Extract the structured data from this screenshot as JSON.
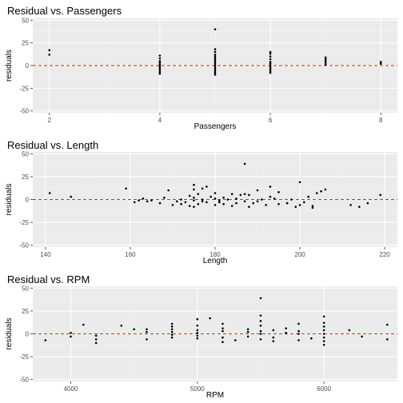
{
  "chart_data": [
    {
      "type": "scatter",
      "title": "Residual vs. Passengers",
      "xlabel": "Passengers",
      "ylabel": "residuals",
      "xlim": [
        1.7,
        8.3
      ],
      "ylim": [
        -52,
        52
      ],
      "xticks": [
        2,
        4,
        6,
        8
      ],
      "xtick_labels": [
        "2",
        "4",
        "6",
        "8"
      ],
      "yticks": [
        -50,
        -25,
        0,
        25,
        50
      ],
      "ytick_labels": [
        "-50",
        "-25",
        "0",
        "25",
        "50"
      ],
      "reference_line": 0,
      "points": [
        [
          2,
          12
        ],
        [
          2,
          17
        ],
        [
          4,
          -9
        ],
        [
          4,
          -7
        ],
        [
          4,
          -5
        ],
        [
          4,
          -3
        ],
        [
          4,
          -1
        ],
        [
          4,
          1
        ],
        [
          4,
          3
        ],
        [
          4,
          5
        ],
        [
          4,
          8
        ],
        [
          4,
          11
        ],
        [
          5,
          -10
        ],
        [
          5,
          -8
        ],
        [
          5,
          -6
        ],
        [
          5,
          -4
        ],
        [
          5,
          -2
        ],
        [
          5,
          0
        ],
        [
          5,
          2
        ],
        [
          5,
          4
        ],
        [
          5,
          6
        ],
        [
          5,
          8
        ],
        [
          5,
          10
        ],
        [
          5,
          12
        ],
        [
          5,
          15
        ],
        [
          5,
          18
        ],
        [
          5,
          40
        ],
        [
          6,
          -8
        ],
        [
          6,
          -6
        ],
        [
          6,
          -4
        ],
        [
          6,
          -2
        ],
        [
          6,
          0
        ],
        [
          6,
          2
        ],
        [
          6,
          4
        ],
        [
          6,
          7
        ],
        [
          6,
          10
        ],
        [
          6,
          13
        ],
        [
          6,
          15
        ],
        [
          7,
          1
        ],
        [
          7,
          3
        ],
        [
          7,
          5
        ],
        [
          7,
          7
        ],
        [
          7,
          9
        ],
        [
          8,
          2
        ],
        [
          8,
          4
        ]
      ]
    },
    {
      "type": "scatter",
      "title": "Residual vs. Length",
      "xlabel": "Length",
      "ylabel": "residuals",
      "xlim": [
        137,
        223
      ],
      "ylim": [
        -52,
        52
      ],
      "xticks": [
        140,
        160,
        180,
        200,
        220
      ],
      "xtick_labels": [
        "140",
        "160",
        "180",
        "200",
        "220"
      ],
      "yticks": [
        -50,
        -25,
        0,
        25,
        50
      ],
      "ytick_labels": [
        "-50",
        "-25",
        "0",
        "25",
        "50"
      ],
      "reference_line": 0,
      "points": [
        [
          141,
          7
        ],
        [
          146,
          3
        ],
        [
          159,
          12
        ],
        [
          161,
          -3
        ],
        [
          162,
          -1
        ],
        [
          163,
          1
        ],
        [
          164,
          -2
        ],
        [
          165,
          -1
        ],
        [
          167,
          -4
        ],
        [
          168,
          2
        ],
        [
          169,
          10
        ],
        [
          170,
          -6
        ],
        [
          171,
          -2
        ],
        [
          172,
          -5
        ],
        [
          172,
          0
        ],
        [
          173,
          -3
        ],
        [
          174,
          -7
        ],
        [
          174,
          4
        ],
        [
          175,
          -8
        ],
        [
          175,
          -1
        ],
        [
          175,
          2
        ],
        [
          175,
          11
        ],
        [
          175,
          16
        ],
        [
          176,
          -5
        ],
        [
          176,
          6
        ],
        [
          177,
          0
        ],
        [
          177,
          -2
        ],
        [
          177,
          12
        ],
        [
          178,
          14
        ],
        [
          178,
          -3
        ],
        [
          179,
          3
        ],
        [
          180,
          -6
        ],
        [
          180,
          1
        ],
        [
          180,
          7
        ],
        [
          181,
          -1
        ],
        [
          181,
          -3
        ],
        [
          182,
          -5
        ],
        [
          182,
          2
        ],
        [
          183,
          0
        ],
        [
          184,
          -7
        ],
        [
          184,
          6
        ],
        [
          185,
          -4
        ],
        [
          185,
          1
        ],
        [
          186,
          5
        ],
        [
          187,
          39
        ],
        [
          187,
          -2
        ],
        [
          187,
          6
        ],
        [
          188,
          -8
        ],
        [
          188,
          5
        ],
        [
          189,
          -4
        ],
        [
          190,
          -2
        ],
        [
          190,
          10
        ],
        [
          191,
          0
        ],
        [
          192,
          -6
        ],
        [
          193,
          14
        ],
        [
          193,
          3
        ],
        [
          194,
          1
        ],
        [
          195,
          -5
        ],
        [
          195,
          8
        ],
        [
          197,
          -4
        ],
        [
          198,
          0
        ],
        [
          199,
          -8
        ],
        [
          200,
          -6
        ],
        [
          200,
          19
        ],
        [
          201,
          -3
        ],
        [
          202,
          3
        ],
        [
          203,
          -7
        ],
        [
          203,
          -9
        ],
        [
          204,
          7
        ],
        [
          205,
          9
        ],
        [
          206,
          11
        ],
        [
          212,
          -6
        ],
        [
          214,
          -8
        ],
        [
          216,
          -4
        ],
        [
          219,
          5
        ]
      ]
    },
    {
      "type": "scatter",
      "title": "Residual vs. RPM",
      "xlabel": "RPM",
      "ylabel": "residuals",
      "xlim": [
        3700,
        6580
      ],
      "ylim": [
        -52,
        52
      ],
      "xticks": [
        4000,
        5000,
        6000
      ],
      "xtick_labels": [
        "4000",
        "5000",
        "6000"
      ],
      "yticks": [
        -50,
        -25,
        0,
        25,
        50
      ],
      "ytick_labels": [
        "-50",
        "-25",
        "0",
        "25",
        "50"
      ],
      "reference_line": 0,
      "points": [
        [
          3800,
          -7
        ],
        [
          4000,
          -3
        ],
        [
          4000,
          1
        ],
        [
          4100,
          10
        ],
        [
          4200,
          -10
        ],
        [
          4200,
          -6
        ],
        [
          4200,
          -2
        ],
        [
          4400,
          9
        ],
        [
          4500,
          5
        ],
        [
          4600,
          -6
        ],
        [
          4600,
          2
        ],
        [
          4600,
          5
        ],
        [
          4800,
          -4
        ],
        [
          4800,
          -1
        ],
        [
          4800,
          2
        ],
        [
          4800,
          5
        ],
        [
          4800,
          8
        ],
        [
          4800,
          11
        ],
        [
          5000,
          -5
        ],
        [
          5000,
          -2
        ],
        [
          5000,
          1
        ],
        [
          5000,
          4
        ],
        [
          5000,
          9
        ],
        [
          5000,
          16
        ],
        [
          5100,
          17
        ],
        [
          5200,
          -9
        ],
        [
          5200,
          -4
        ],
        [
          5200,
          3
        ],
        [
          5200,
          6
        ],
        [
          5200,
          11
        ],
        [
          5300,
          -7
        ],
        [
          5400,
          -3
        ],
        [
          5400,
          2
        ],
        [
          5400,
          5
        ],
        [
          5500,
          -6
        ],
        [
          5500,
          0
        ],
        [
          5500,
          3
        ],
        [
          5500,
          9
        ],
        [
          5500,
          14
        ],
        [
          5500,
          20
        ],
        [
          5500,
          39
        ],
        [
          5600,
          -8
        ],
        [
          5600,
          -4
        ],
        [
          5600,
          4
        ],
        [
          5700,
          1
        ],
        [
          5700,
          6
        ],
        [
          5800,
          -7
        ],
        [
          5800,
          0
        ],
        [
          5800,
          3
        ],
        [
          5800,
          11
        ],
        [
          5900,
          -5
        ],
        [
          6000,
          -12
        ],
        [
          6000,
          -8
        ],
        [
          6000,
          -4
        ],
        [
          6000,
          0
        ],
        [
          6000,
          4
        ],
        [
          6000,
          8
        ],
        [
          6000,
          12
        ],
        [
          6000,
          19
        ],
        [
          6200,
          4
        ],
        [
          6300,
          -3
        ],
        [
          6500,
          -6
        ],
        [
          6500,
          10
        ]
      ]
    }
  ]
}
